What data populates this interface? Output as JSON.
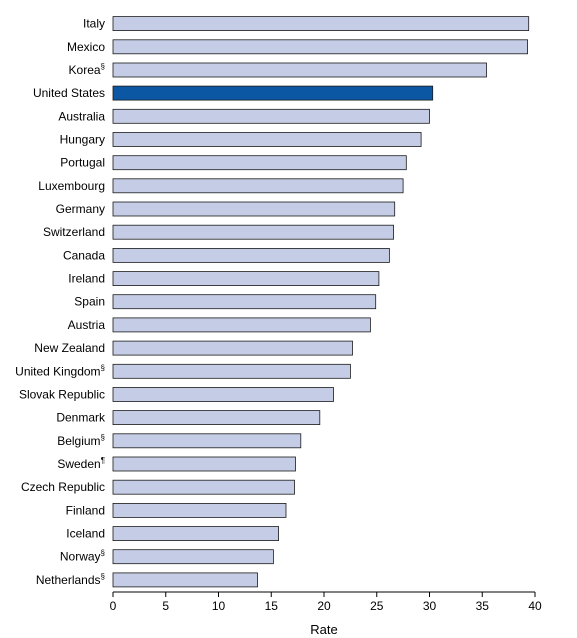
{
  "chart_data": {
    "type": "bar",
    "orientation": "horizontal",
    "title": "",
    "xlabel": "Rate",
    "ylabel": "",
    "xlim": [
      0,
      40
    ],
    "x_ticks": [
      "0",
      "5",
      "10",
      "15",
      "20",
      "25",
      "30",
      "35",
      "40"
    ],
    "grid": false,
    "legend": "none",
    "categories": [
      {
        "name": "Italy",
        "mark": "",
        "value": 39.4
      },
      {
        "name": "Mexico",
        "mark": "",
        "value": 39.3
      },
      {
        "name": "Korea",
        "mark": "§",
        "value": 35.4
      },
      {
        "name": "United States",
        "mark": "",
        "value": 30.3,
        "highlight": true
      },
      {
        "name": "Australia",
        "mark": "",
        "value": 30.0
      },
      {
        "name": "Hungary",
        "mark": "",
        "value": 29.2
      },
      {
        "name": "Portugal",
        "mark": "",
        "value": 27.8
      },
      {
        "name": "Luxembourg",
        "mark": "",
        "value": 27.5
      },
      {
        "name": "Germany",
        "mark": "",
        "value": 26.7
      },
      {
        "name": "Switzerland",
        "mark": "",
        "value": 26.6
      },
      {
        "name": "Canada",
        "mark": "",
        "value": 26.2
      },
      {
        "name": "Ireland",
        "mark": "",
        "value": 25.2
      },
      {
        "name": "Spain",
        "mark": "",
        "value": 24.9
      },
      {
        "name": "Austria",
        "mark": "",
        "value": 24.4
      },
      {
        "name": "New Zealand",
        "mark": "",
        "value": 22.7
      },
      {
        "name": "United Kingdom",
        "mark": "§",
        "value": 22.5
      },
      {
        "name": "Slovak Republic",
        "mark": "",
        "value": 20.9
      },
      {
        "name": "Denmark",
        "mark": "",
        "value": 19.6
      },
      {
        "name": "Belgium",
        "mark": "§",
        "value": 17.8
      },
      {
        "name": "Sweden",
        "mark": "¶",
        "value": 17.3
      },
      {
        "name": "Czech Republic",
        "mark": "",
        "value": 17.2
      },
      {
        "name": "Finland",
        "mark": "",
        "value": 16.4
      },
      {
        "name": "Iceland",
        "mark": "",
        "value": 15.7
      },
      {
        "name": "Norway",
        "mark": "§",
        "value": 15.2
      },
      {
        "name": "Netherlands",
        "mark": "§",
        "value": 13.7
      }
    ],
    "colors": {
      "bar_fill": "#c5cde6",
      "bar_stroke": "#1a1a1a",
      "highlight_fill": "#0b57a4",
      "axis": "#000000"
    }
  }
}
